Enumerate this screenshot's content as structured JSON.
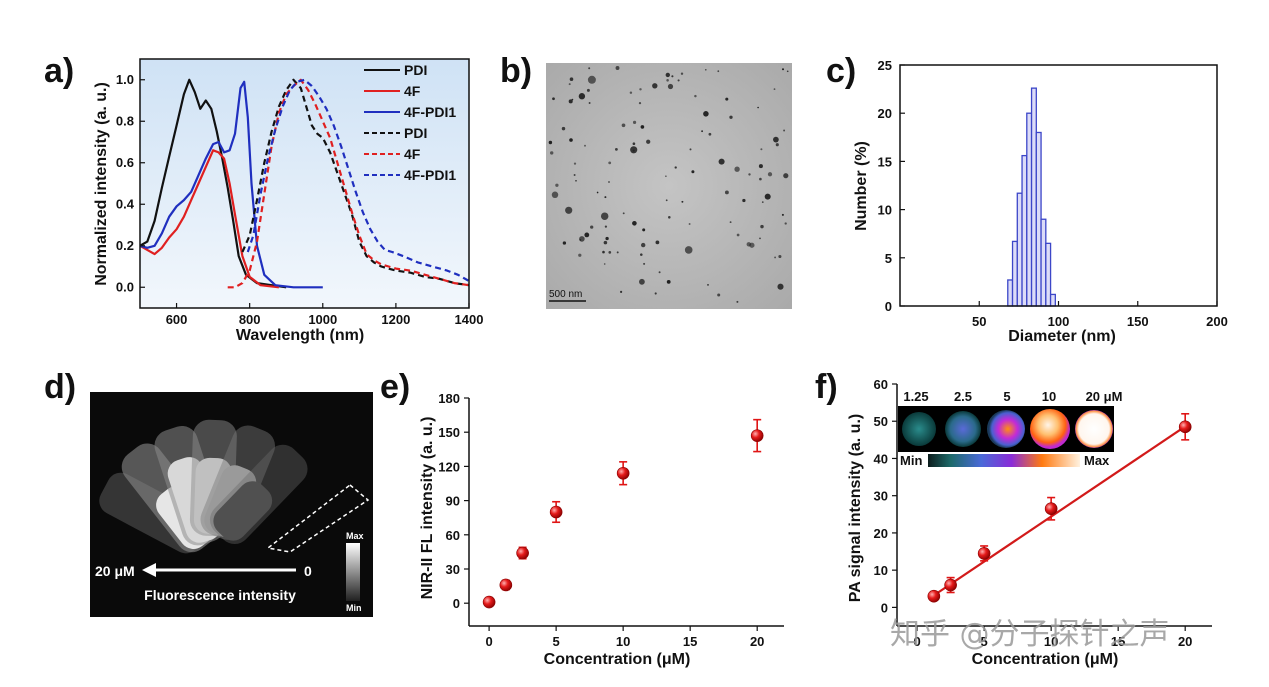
{
  "panels": {
    "a": "a)",
    "b": "b)",
    "c": "c)",
    "d": "d)",
    "e": "e)",
    "f": "f)"
  },
  "colors": {
    "black": "#111111",
    "red": "#e02020",
    "blue": "#1f2fbf",
    "point": "#e01515",
    "bar_fill": "#dcdcf8",
    "bar_edge": "#3c46c8",
    "panel_a_bg": "#dbe9f7"
  },
  "chart_data": [
    {
      "id": "a",
      "type": "line",
      "xlabel": "Wavelength (nm)",
      "ylabel": "Normalized intensity (a. u.)",
      "xlim": [
        500,
        1400
      ],
      "ylim": [
        -0.1,
        1.1
      ],
      "xticks": [
        "600",
        "800",
        "1000",
        "1200",
        "1400"
      ],
      "xtick_values": [
        600,
        800,
        1000,
        1200,
        1400
      ],
      "yticks": [
        "0.0",
        "0.2",
        "0.4",
        "0.6",
        "0.8",
        "1.0"
      ],
      "ytick_values": [
        0,
        0.2,
        0.4,
        0.6,
        0.8,
        1.0
      ],
      "series": [
        {
          "name": "PDI",
          "style": "solid",
          "color": "black",
          "points": [
            [
              500,
              0.2
            ],
            [
              520,
              0.22
            ],
            [
              540,
              0.32
            ],
            [
              560,
              0.48
            ],
            [
              580,
              0.63
            ],
            [
              600,
              0.78
            ],
            [
              620,
              0.93
            ],
            [
              635,
              1.0
            ],
            [
              650,
              0.94
            ],
            [
              665,
              0.86
            ],
            [
              680,
              0.9
            ],
            [
              695,
              0.86
            ],
            [
              710,
              0.75
            ],
            [
              725,
              0.62
            ],
            [
              740,
              0.48
            ],
            [
              755,
              0.32
            ],
            [
              770,
              0.15
            ],
            [
              790,
              0.06
            ],
            [
              820,
              0.02
            ],
            [
              860,
              0.01
            ],
            [
              900,
              0.0
            ]
          ]
        },
        {
          "name": "4F",
          "style": "solid",
          "color": "red",
          "points": [
            [
              500,
              0.2
            ],
            [
              520,
              0.18
            ],
            [
              540,
              0.16
            ],
            [
              560,
              0.19
            ],
            [
              580,
              0.24
            ],
            [
              600,
              0.28
            ],
            [
              620,
              0.34
            ],
            [
              640,
              0.42
            ],
            [
              660,
              0.5
            ],
            [
              680,
              0.58
            ],
            [
              700,
              0.66
            ],
            [
              715,
              0.65
            ],
            [
              730,
              0.62
            ],
            [
              745,
              0.5
            ],
            [
              760,
              0.35
            ],
            [
              780,
              0.15
            ],
            [
              800,
              0.05
            ],
            [
              830,
              0.01
            ],
            [
              880,
              0.0
            ]
          ]
        },
        {
          "name": "4F-PDI1",
          "style": "solid",
          "color": "blue",
          "points": [
            [
              500,
              0.2
            ],
            [
              520,
              0.19
            ],
            [
              540,
              0.2
            ],
            [
              560,
              0.26
            ],
            [
              580,
              0.34
            ],
            [
              600,
              0.39
            ],
            [
              620,
              0.42
            ],
            [
              640,
              0.46
            ],
            [
              660,
              0.54
            ],
            [
              680,
              0.62
            ],
            [
              700,
              0.69
            ],
            [
              715,
              0.7
            ],
            [
              730,
              0.65
            ],
            [
              745,
              0.66
            ],
            [
              760,
              0.74
            ],
            [
              775,
              0.96
            ],
            [
              785,
              0.99
            ],
            [
              795,
              0.82
            ],
            [
              805,
              0.5
            ],
            [
              820,
              0.2
            ],
            [
              840,
              0.06
            ],
            [
              870,
              0.01
            ],
            [
              920,
              0.0
            ],
            [
              1000,
              0.0
            ]
          ]
        },
        {
          "name": "PDI",
          "style": "dashed",
          "color": "black",
          "points": [
            [
              780,
              0.17
            ],
            [
              800,
              0.25
            ],
            [
              820,
              0.42
            ],
            [
              840,
              0.6
            ],
            [
              860,
              0.75
            ],
            [
              880,
              0.87
            ],
            [
              900,
              0.95
            ],
            [
              920,
              1.0
            ],
            [
              940,
              0.96
            ],
            [
              955,
              0.87
            ],
            [
              970,
              0.78
            ],
            [
              985,
              0.74
            ],
            [
              1000,
              0.72
            ],
            [
              1020,
              0.65
            ],
            [
              1040,
              0.55
            ],
            [
              1060,
              0.45
            ],
            [
              1080,
              0.35
            ],
            [
              1100,
              0.22
            ],
            [
              1120,
              0.15
            ],
            [
              1140,
              0.12
            ],
            [
              1160,
              0.1
            ],
            [
              1180,
              0.09
            ],
            [
              1200,
              0.08
            ],
            [
              1240,
              0.07
            ],
            [
              1280,
              0.05
            ],
            [
              1320,
              0.04
            ],
            [
              1360,
              0.02
            ],
            [
              1400,
              0.01
            ]
          ]
        },
        {
          "name": "4F",
          "style": "dashed",
          "color": "red",
          "points": [
            [
              740,
              0.0
            ],
            [
              760,
              0.0
            ],
            [
              780,
              0.02
            ],
            [
              800,
              0.08
            ],
            [
              820,
              0.22
            ],
            [
              840,
              0.45
            ],
            [
              860,
              0.68
            ],
            [
              880,
              0.84
            ],
            [
              900,
              0.93
            ],
            [
              920,
              0.97
            ],
            [
              940,
              1.0
            ],
            [
              960,
              0.95
            ],
            [
              980,
              0.88
            ],
            [
              1000,
              0.8
            ],
            [
              1020,
              0.72
            ],
            [
              1040,
              0.6
            ],
            [
              1060,
              0.48
            ],
            [
              1080,
              0.36
            ],
            [
              1100,
              0.25
            ],
            [
              1120,
              0.16
            ],
            [
              1140,
              0.13
            ],
            [
              1160,
              0.11
            ],
            [
              1180,
              0.1
            ],
            [
              1200,
              0.09
            ],
            [
              1240,
              0.08
            ],
            [
              1280,
              0.06
            ],
            [
              1320,
              0.04
            ],
            [
              1360,
              0.02
            ],
            [
              1400,
              0.01
            ]
          ]
        },
        {
          "name": "4F-PDI1",
          "style": "dashed",
          "color": "blue",
          "points": [
            [
              795,
              0.17
            ],
            [
              810,
              0.25
            ],
            [
              830,
              0.45
            ],
            [
              850,
              0.62
            ],
            [
              870,
              0.76
            ],
            [
              890,
              0.87
            ],
            [
              910,
              0.95
            ],
            [
              930,
              0.99
            ],
            [
              950,
              1.0
            ],
            [
              970,
              0.97
            ],
            [
              990,
              0.92
            ],
            [
              1010,
              0.86
            ],
            [
              1030,
              0.78
            ],
            [
              1050,
              0.68
            ],
            [
              1070,
              0.57
            ],
            [
              1090,
              0.46
            ],
            [
              1110,
              0.36
            ],
            [
              1130,
              0.28
            ],
            [
              1150,
              0.22
            ],
            [
              1170,
              0.18
            ],
            [
              1190,
              0.17
            ],
            [
              1220,
              0.15
            ],
            [
              1260,
              0.12
            ],
            [
              1300,
              0.1
            ],
            [
              1340,
              0.08
            ],
            [
              1370,
              0.06
            ],
            [
              1400,
              0.03
            ]
          ]
        }
      ]
    },
    {
      "id": "c",
      "type": "bar",
      "xlabel": "Diameter (nm)",
      "ylabel": "Number (%)",
      "xlim": [
        0,
        200
      ],
      "ylim": [
        0,
        25
      ],
      "xticks": [
        "50",
        "100",
        "150",
        "200"
      ],
      "xtick_values": [
        50,
        100,
        150,
        200
      ],
      "yticks": [
        "0",
        "5",
        "10",
        "15",
        "20",
        "25"
      ],
      "ytick_values": [
        0,
        5,
        10,
        15,
        20,
        25
      ],
      "bin_width": 3,
      "bins": [
        68,
        71,
        74,
        77,
        80,
        83,
        86,
        89,
        92,
        95
      ],
      "values": [
        2.7,
        6.7,
        11.7,
        15.6,
        20,
        22.6,
        18,
        9,
        6.5,
        1.2
      ]
    },
    {
      "id": "e",
      "type": "scatter",
      "xlabel": "Concentration (μM)",
      "ylabel": "NIR-II FL intensity (a. u.)",
      "xlim": [
        -1.5,
        22
      ],
      "ylim": [
        -20,
        180
      ],
      "xticks": [
        "0",
        "5",
        "10",
        "15",
        "20"
      ],
      "xtick_values": [
        0,
        5,
        10,
        15,
        20
      ],
      "yticks": [
        "0",
        "30",
        "60",
        "90",
        "120",
        "150",
        "180"
      ],
      "ytick_values": [
        0,
        30,
        60,
        90,
        120,
        150,
        180
      ],
      "x": [
        0,
        1.25,
        2.5,
        5,
        10,
        20
      ],
      "y": [
        1,
        16,
        44,
        80,
        114,
        147
      ],
      "yerr": [
        3,
        4,
        5,
        9,
        10,
        14
      ]
    },
    {
      "id": "f",
      "type": "scatter",
      "xlabel": "Concentration (μM)",
      "ylabel": "PA signal intensity (a. u.)",
      "xlim": [
        -1.5,
        22
      ],
      "ylim": [
        -5,
        60
      ],
      "xticks": [
        "0",
        "5",
        "10",
        "15",
        "20"
      ],
      "xtick_values": [
        0,
        5,
        10,
        15,
        20
      ],
      "yticks": [
        "0",
        "10",
        "20",
        "30",
        "40",
        "50",
        "60"
      ],
      "ytick_values": [
        0,
        10,
        20,
        30,
        40,
        50,
        60
      ],
      "x": [
        1.25,
        2.5,
        5,
        10,
        20
      ],
      "y": [
        3,
        6,
        14.5,
        26.5,
        48.5
      ],
      "yerr": [
        1,
        2,
        2,
        3,
        3.5
      ],
      "fit": {
        "slope": 2.42,
        "intercept": 0.2,
        "x_range": [
          1,
          20
        ]
      }
    }
  ],
  "legend_a": [
    "PDI",
    "4F",
    "4F-PDI1",
    "PDI",
    "4F",
    "4F-PDI1"
  ],
  "panel_b": {
    "scalebar": "500 nm"
  },
  "panel_d": {
    "left_label": "20 μM",
    "right_label": "0",
    "caption": "Fluorescence intensity",
    "max": "Max",
    "min": "Min"
  },
  "panel_f_inset": {
    "concentrations": [
      "1.25",
      "2.5",
      "5",
      "10",
      "20 μM"
    ],
    "min": "Min",
    "max": "Max"
  },
  "watermark": "知乎 @分子探针之声"
}
